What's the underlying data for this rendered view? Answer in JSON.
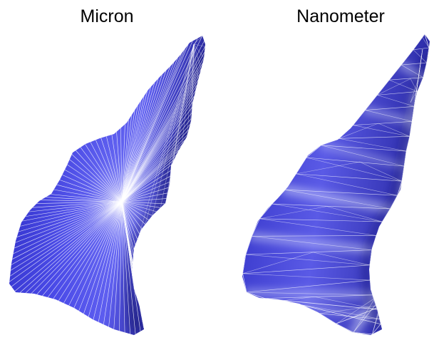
{
  "panels": [
    {
      "label": "Micron"
    },
    {
      "label": "Nanometer"
    }
  ],
  "colors": {
    "mesh_base": "#3a3ad6",
    "mesh_shadow": "#1e1e96",
    "mesh_highlight": "#c9cdfa",
    "wire": "#ffffff"
  }
}
